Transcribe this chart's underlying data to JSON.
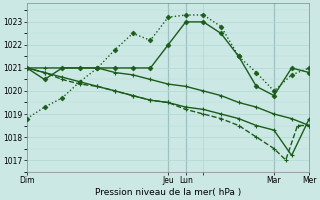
{
  "bg_color": "#cce8e4",
  "grid_color": "#b0d8d4",
  "line_color": "#1a5c1a",
  "xlabel": "Pression niveau de la mer( hPa )",
  "ylim": [
    1016.5,
    1023.8
  ],
  "xlim": [
    0,
    48
  ],
  "yticks": [
    1017,
    1018,
    1019,
    1020,
    1021,
    1022,
    1023
  ],
  "xticks": [
    0,
    24,
    27,
    30,
    42,
    48
  ],
  "xtick_labels": [
    "Dim",
    "Jeu",
    "Lun",
    "",
    "Mar",
    "Mer"
  ],
  "vlines": [
    24,
    27,
    42
  ],
  "series1_x": [
    0,
    3,
    6,
    9,
    12,
    15,
    18,
    21,
    24,
    27,
    30,
    33,
    36,
    39,
    42,
    45,
    48
  ],
  "series1_y": [
    1018.8,
    1019.3,
    1019.7,
    1020.4,
    1021.0,
    1021.8,
    1022.5,
    1022.2,
    1023.2,
    1023.3,
    1023.3,
    1022.8,
    1021.5,
    1020.8,
    1020.0,
    1020.7,
    1021.0
  ],
  "series2_x": [
    0,
    3,
    6,
    9,
    12,
    15,
    18,
    21,
    24,
    27,
    30,
    33,
    36,
    39,
    42,
    45,
    48
  ],
  "series2_y": [
    1021.0,
    1020.5,
    1021.0,
    1021.0,
    1021.0,
    1021.0,
    1021.0,
    1021.0,
    1022.0,
    1023.0,
    1023.0,
    1022.5,
    1021.5,
    1020.2,
    1019.8,
    1021.0,
    1020.8
  ],
  "series3_x": [
    0,
    3,
    6,
    9,
    12,
    15,
    18,
    21,
    24,
    27,
    30,
    33,
    36,
    39,
    42,
    45,
    48
  ],
  "series3_y": [
    1021.0,
    1021.0,
    1021.0,
    1021.0,
    1021.0,
    1020.8,
    1020.7,
    1020.5,
    1020.3,
    1020.2,
    1020.0,
    1019.8,
    1019.5,
    1019.3,
    1019.0,
    1018.8,
    1018.5
  ],
  "series4_x": [
    0,
    3,
    6,
    9,
    12,
    15,
    18,
    21,
    24,
    27,
    30,
    33,
    36,
    39,
    42,
    45,
    48
  ],
  "series4_y": [
    1021.0,
    1020.8,
    1020.6,
    1020.4,
    1020.2,
    1020.0,
    1019.8,
    1019.6,
    1019.5,
    1019.3,
    1019.2,
    1019.0,
    1018.8,
    1018.5,
    1018.3,
    1017.2,
    1018.8
  ],
  "series5_x": [
    0,
    3,
    6,
    9,
    12,
    15,
    18,
    21,
    24,
    27,
    30,
    33,
    36,
    39,
    42,
    44,
    46,
    48
  ],
  "series5_y": [
    1021.0,
    1020.8,
    1020.5,
    1020.3,
    1020.2,
    1020.0,
    1019.8,
    1019.6,
    1019.5,
    1019.2,
    1019.0,
    1018.8,
    1018.5,
    1018.0,
    1017.5,
    1017.0,
    1018.5,
    1018.5
  ]
}
